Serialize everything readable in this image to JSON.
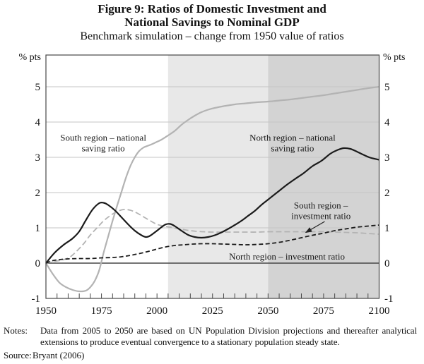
{
  "header": {
    "title_line1": "Figure 9: Ratios of Domestic Investment and",
    "title_line2": "National Savings to Nominal GDP",
    "subtitle": "Benchmark simulation – change from 1950 value of ratios"
  },
  "footer": {
    "notes_label": "Notes:",
    "notes_text": "Data from 2005 to 2050 are based on UN Population Division projections and thereafter analytical extensions to produce eventual convergence to a stationary population steady state.",
    "source_label": "Source:",
    "source_text": "Bryant (2006)"
  },
  "colors": {
    "black_line": "#1b1b1b",
    "gray_line": "#b3b3b3",
    "grid": "#c4c4c4",
    "axis": "#464646",
    "band_light": "#e8e8e8",
    "band_dark": "#d3d3d3",
    "arrow": "#222222"
  },
  "chart_data": {
    "type": "line",
    "title": "Figure 9: Ratios of Domestic Investment and National Savings to Nominal GDP",
    "subtitle": "Benchmark simulation – change from 1950 value of ratios",
    "xlabel": "",
    "ylabel": "% pts",
    "y_axis_label": "% pts",
    "x_range": [
      1950,
      2100
    ],
    "y_range": [
      -1,
      5.9
    ],
    "x_ticks": [
      1950,
      1975,
      2000,
      2025,
      2050,
      2075,
      2100
    ],
    "x_minor_tick_step": 5,
    "y_ticks": [
      -1,
      0,
      1,
      2,
      3,
      4,
      5
    ],
    "grid": true,
    "legend_position": "inline-annotations",
    "bands": [
      {
        "from": 2005,
        "to": 2050,
        "color": "#e8e8e8"
      },
      {
        "from": 2050,
        "to": 2100,
        "color": "#d3d3d3"
      }
    ],
    "series": [
      {
        "id": "south-saving",
        "name": "South region – national saving ratio",
        "style": "solid",
        "color": "#b3b3b3",
        "width": 2.2,
        "points": [
          [
            1950,
            0
          ],
          [
            1953,
            -0.3
          ],
          [
            1956,
            -0.55
          ],
          [
            1959,
            -0.68
          ],
          [
            1962,
            -0.76
          ],
          [
            1965,
            -0.8
          ],
          [
            1968,
            -0.78
          ],
          [
            1970,
            -0.68
          ],
          [
            1972,
            -0.5
          ],
          [
            1974,
            -0.2
          ],
          [
            1976,
            0.3
          ],
          [
            1978,
            0.75
          ],
          [
            1980,
            1.2
          ],
          [
            1982,
            1.62
          ],
          [
            1984,
            2.02
          ],
          [
            1986,
            2.42
          ],
          [
            1988,
            2.75
          ],
          [
            1990,
            3.0
          ],
          [
            1992,
            3.18
          ],
          [
            1994,
            3.28
          ],
          [
            1996,
            3.33
          ],
          [
            1998,
            3.38
          ],
          [
            2000,
            3.44
          ],
          [
            2002,
            3.5
          ],
          [
            2005,
            3.62
          ],
          [
            2008,
            3.75
          ],
          [
            2011,
            3.92
          ],
          [
            2014,
            4.06
          ],
          [
            2017,
            4.18
          ],
          [
            2020,
            4.28
          ],
          [
            2023,
            4.35
          ],
          [
            2026,
            4.4
          ],
          [
            2030,
            4.45
          ],
          [
            2035,
            4.5
          ],
          [
            2040,
            4.53
          ],
          [
            2045,
            4.56
          ],
          [
            2050,
            4.58
          ],
          [
            2055,
            4.61
          ],
          [
            2060,
            4.64
          ],
          [
            2065,
            4.68
          ],
          [
            2070,
            4.72
          ],
          [
            2075,
            4.76
          ],
          [
            2080,
            4.81
          ],
          [
            2085,
            4.86
          ],
          [
            2090,
            4.91
          ],
          [
            2095,
            4.96
          ],
          [
            2100,
            5.0
          ]
        ]
      },
      {
        "id": "south-investment",
        "name": "South region – investment ratio",
        "style": "dashed",
        "color": "#b3b3b3",
        "width": 1.8,
        "dash": "8 4",
        "points": [
          [
            1950,
            0
          ],
          [
            1954,
            0.05
          ],
          [
            1958,
            0.1
          ],
          [
            1961,
            0.18
          ],
          [
            1964,
            0.35
          ],
          [
            1967,
            0.55
          ],
          [
            1970,
            0.8
          ],
          [
            1973,
            1.0
          ],
          [
            1976,
            1.2
          ],
          [
            1979,
            1.35
          ],
          [
            1982,
            1.46
          ],
          [
            1985,
            1.52
          ],
          [
            1988,
            1.5
          ],
          [
            1991,
            1.42
          ],
          [
            1994,
            1.31
          ],
          [
            1997,
            1.2
          ],
          [
            2000,
            1.1
          ],
          [
            2003,
            1.05
          ],
          [
            2006,
            1.02
          ],
          [
            2009,
            0.98
          ],
          [
            2012,
            0.95
          ],
          [
            2015,
            0.92
          ],
          [
            2018,
            0.9
          ],
          [
            2021,
            0.89
          ],
          [
            2025,
            0.88
          ],
          [
            2030,
            0.88
          ],
          [
            2035,
            0.88
          ],
          [
            2040,
            0.88
          ],
          [
            2045,
            0.88
          ],
          [
            2050,
            0.89
          ],
          [
            2055,
            0.89
          ],
          [
            2060,
            0.89
          ],
          [
            2065,
            0.89
          ],
          [
            2070,
            0.89
          ],
          [
            2075,
            0.89
          ],
          [
            2080,
            0.88
          ],
          [
            2085,
            0.87
          ],
          [
            2090,
            0.86
          ],
          [
            2095,
            0.84
          ],
          [
            2100,
            0.82
          ]
        ]
      },
      {
        "id": "north-investment",
        "name": "North region – investment ratio",
        "style": "dashed",
        "color": "#1b1b1b",
        "width": 1.8,
        "dash": "6 3.5",
        "points": [
          [
            1950,
            0
          ],
          [
            1953,
            0.07
          ],
          [
            1956,
            0.1
          ],
          [
            1960,
            0.12
          ],
          [
            1965,
            0.13
          ],
          [
            1970,
            0.13
          ],
          [
            1975,
            0.15
          ],
          [
            1980,
            0.16
          ],
          [
            1984,
            0.18
          ],
          [
            1988,
            0.22
          ],
          [
            1992,
            0.27
          ],
          [
            1996,
            0.33
          ],
          [
            2000,
            0.4
          ],
          [
            2004,
            0.46
          ],
          [
            2008,
            0.5
          ],
          [
            2012,
            0.52
          ],
          [
            2016,
            0.54
          ],
          [
            2020,
            0.55
          ],
          [
            2025,
            0.55
          ],
          [
            2030,
            0.54
          ],
          [
            2035,
            0.53
          ],
          [
            2040,
            0.52
          ],
          [
            2045,
            0.53
          ],
          [
            2050,
            0.55
          ],
          [
            2055,
            0.59
          ],
          [
            2060,
            0.65
          ],
          [
            2065,
            0.72
          ],
          [
            2070,
            0.79
          ],
          [
            2075,
            0.85
          ],
          [
            2080,
            0.92
          ],
          [
            2085,
            0.97
          ],
          [
            2090,
            1.02
          ],
          [
            2095,
            1.05
          ],
          [
            2100,
            1.08
          ]
        ]
      },
      {
        "id": "north-saving",
        "name": "North region – national saving ratio",
        "style": "solid",
        "color": "#1b1b1b",
        "width": 2.2,
        "points": [
          [
            1950,
            0
          ],
          [
            1954,
            0.3
          ],
          [
            1958,
            0.52
          ],
          [
            1962,
            0.7
          ],
          [
            1965,
            0.9
          ],
          [
            1968,
            1.22
          ],
          [
            1971,
            1.52
          ],
          [
            1974,
            1.7
          ],
          [
            1976,
            1.71
          ],
          [
            1978,
            1.65
          ],
          [
            1981,
            1.5
          ],
          [
            1984,
            1.3
          ],
          [
            1987,
            1.1
          ],
          [
            1990,
            0.92
          ],
          [
            1993,
            0.79
          ],
          [
            1995,
            0.74
          ],
          [
            1997,
            0.78
          ],
          [
            2000,
            0.92
          ],
          [
            2002,
            1.02
          ],
          [
            2004,
            1.1
          ],
          [
            2006,
            1.11
          ],
          [
            2008,
            1.05
          ],
          [
            2011,
            0.92
          ],
          [
            2014,
            0.8
          ],
          [
            2017,
            0.74
          ],
          [
            2020,
            0.72
          ],
          [
            2023,
            0.74
          ],
          [
            2026,
            0.79
          ],
          [
            2029,
            0.87
          ],
          [
            2032,
            0.97
          ],
          [
            2035,
            1.08
          ],
          [
            2038,
            1.2
          ],
          [
            2041,
            1.34
          ],
          [
            2044,
            1.48
          ],
          [
            2047,
            1.65
          ],
          [
            2050,
            1.8
          ],
          [
            2054,
            2.0
          ],
          [
            2058,
            2.2
          ],
          [
            2062,
            2.38
          ],
          [
            2066,
            2.55
          ],
          [
            2070,
            2.75
          ],
          [
            2074,
            2.9
          ],
          [
            2078,
            3.1
          ],
          [
            2081,
            3.2
          ],
          [
            2084,
            3.26
          ],
          [
            2087,
            3.24
          ],
          [
            2090,
            3.16
          ],
          [
            2093,
            3.07
          ],
          [
            2096,
            2.99
          ],
          [
            2100,
            2.93
          ]
        ]
      }
    ],
    "annotations": [
      {
        "text": "South region – national\nsaving ratio",
        "x": 1975.8,
        "y": 3.4
      },
      {
        "text": "North region – national\nsaving ratio",
        "x": 2061,
        "y": 3.4
      },
      {
        "text": "South region –\ninvestment ratio",
        "x": 2073.8,
        "y": 1.48,
        "arrow": {
          "x1": 2075.5,
          "y1": 1.18,
          "x2": 2067,
          "y2": 0.87
        }
      },
      {
        "text": "North region – investment ratio",
        "x": 2058.5,
        "y": 0.18
      }
    ]
  }
}
